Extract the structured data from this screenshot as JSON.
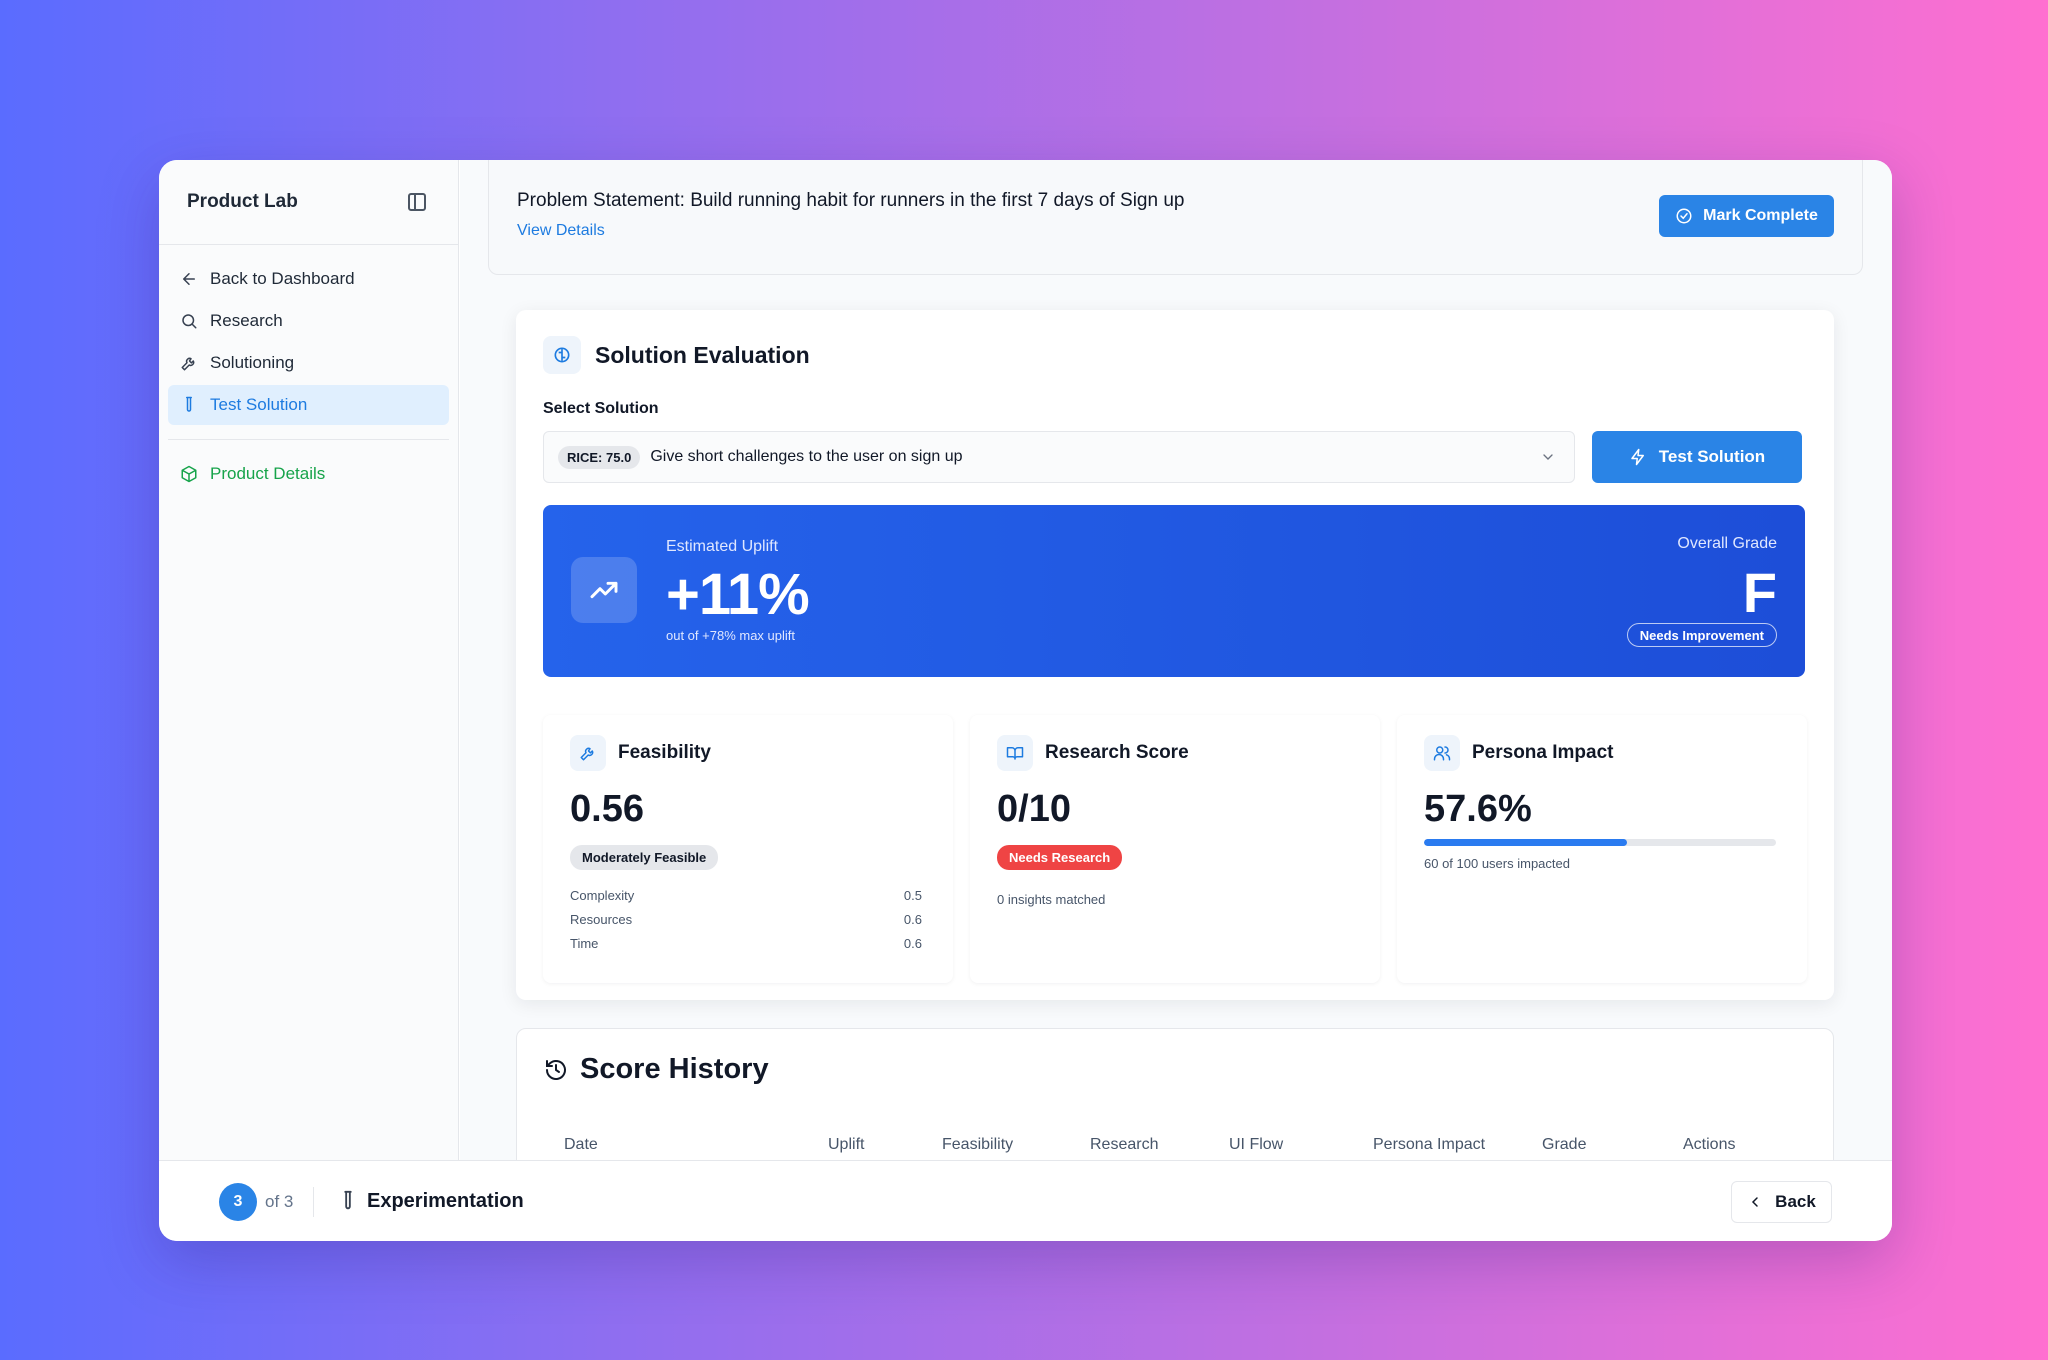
{
  "app": {
    "title": "Product Lab"
  },
  "sidebar": {
    "items": [
      {
        "label": "Back to Dashboard",
        "icon": "arrow-left-icon"
      },
      {
        "label": "Research",
        "icon": "search-icon"
      },
      {
        "label": "Solutioning",
        "icon": "wrench-icon"
      },
      {
        "label": "Test Solution",
        "icon": "test-tube-icon",
        "active": true
      }
    ],
    "secondary": {
      "label": "Product Details",
      "icon": "package-icon"
    }
  },
  "problem": {
    "text": "Problem Statement: Build running habit for runners in the first 7 days of Sign up",
    "link": "View Details",
    "button": "Mark Complete"
  },
  "evaluation": {
    "title": "Solution Evaluation",
    "select_label": "Select Solution",
    "selected": {
      "rice": "RICE: 75.0",
      "text": "Give short challenges to the user on sign up"
    },
    "test_button": "Test Solution",
    "uplift": {
      "label": "Estimated Uplift",
      "value": "+11%",
      "subtext": "out of +78% max uplift",
      "grade_label": "Overall Grade",
      "grade": "F",
      "grade_badge": "Needs Improvement"
    },
    "feasibility": {
      "title": "Feasibility",
      "value": "0.56",
      "badge": "Moderately Feasible",
      "breakdown": [
        {
          "label": "Complexity",
          "value": "0.5"
        },
        {
          "label": "Resources",
          "value": "0.6"
        },
        {
          "label": "Time",
          "value": "0.6"
        }
      ]
    },
    "research": {
      "title": "Research Score",
      "value": "0/10",
      "badge": "Needs Research",
      "detail": "0 insights matched"
    },
    "persona": {
      "title": "Persona Impact",
      "value": "57.6%",
      "progress": 0.576,
      "detail": "60 of 100 users impacted"
    }
  },
  "history": {
    "title": "Score History",
    "columns": [
      "Date",
      "Uplift",
      "Feasibility",
      "Research",
      "UI Flow",
      "Persona Impact",
      "Grade",
      "Actions"
    ]
  },
  "footer": {
    "step": "3",
    "of": "of 3",
    "name": "Experimentation",
    "back": "Back"
  },
  "colors": {
    "accent": "#2a84e6",
    "banner": "#2563eb",
    "danger": "#ef4444",
    "success": "#16a34a"
  }
}
